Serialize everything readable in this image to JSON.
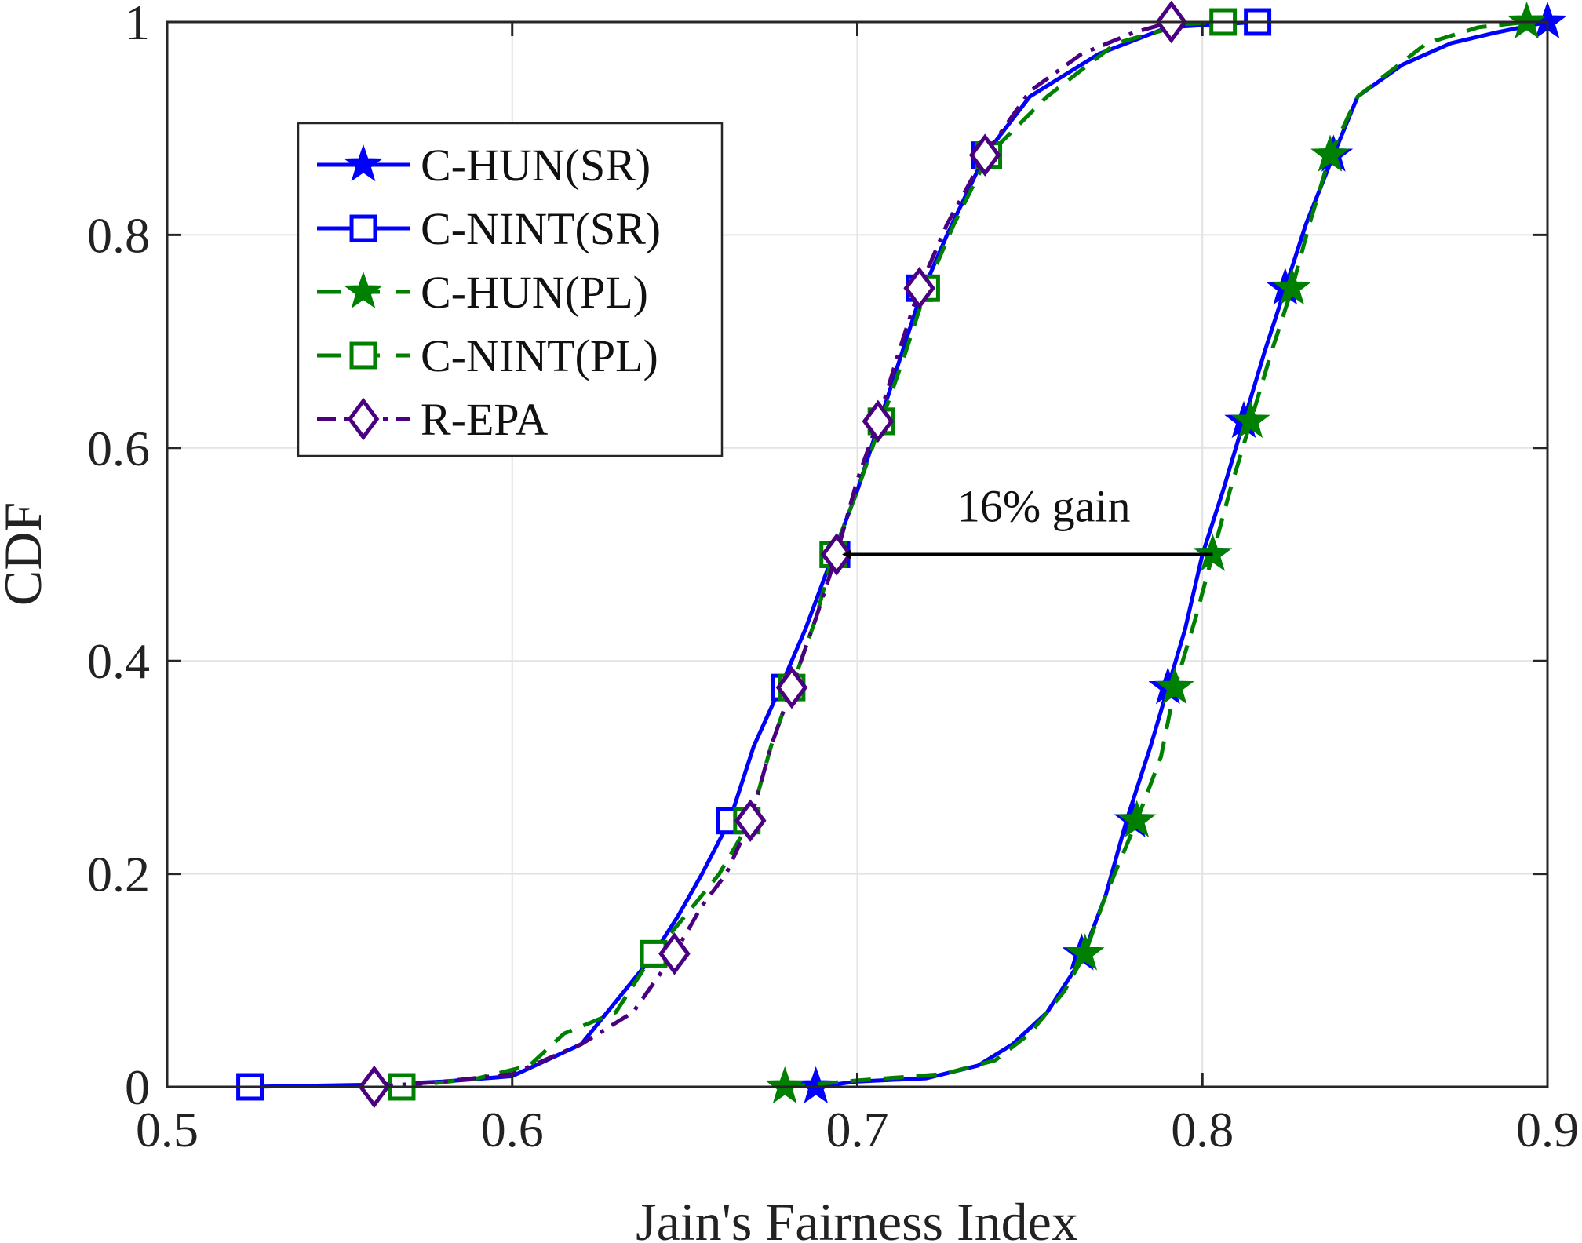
{
  "chart_data": {
    "type": "line",
    "title": "",
    "xlabel": "Jain's Fairness Index",
    "ylabel": "CDF",
    "xlim": [
      0.5,
      0.9
    ],
    "ylim": [
      0,
      1
    ],
    "xticks": [
      0.5,
      0.6,
      0.7,
      0.8,
      0.9
    ],
    "xtick_labels": [
      "0.5",
      "0.6",
      "0.7",
      "0.8",
      "0.9"
    ],
    "yticks": [
      0,
      0.2,
      0.4,
      0.6,
      0.8,
      1
    ],
    "ytick_labels": [
      "0",
      "0.2",
      "0.4",
      "0.6",
      "0.8",
      "1"
    ],
    "grid": true,
    "legend_position": "upper-left",
    "series": [
      {
        "name": "C-HUN(SR)",
        "color": "#0000ff",
        "dash": "solid",
        "marker": "star",
        "points": [
          [
            0.688,
            0
          ],
          [
            0.7,
            0.005
          ],
          [
            0.72,
            0.008
          ],
          [
            0.735,
            0.02
          ],
          [
            0.745,
            0.04
          ],
          [
            0.755,
            0.07
          ],
          [
            0.765,
            0.12
          ],
          [
            0.772,
            0.18
          ],
          [
            0.778,
            0.25
          ],
          [
            0.785,
            0.32
          ],
          [
            0.79,
            0.375
          ],
          [
            0.795,
            0.43
          ],
          [
            0.8,
            0.5
          ],
          [
            0.806,
            0.56
          ],
          [
            0.812,
            0.625
          ],
          [
            0.818,
            0.69
          ],
          [
            0.824,
            0.75
          ],
          [
            0.83,
            0.81
          ],
          [
            0.838,
            0.875
          ],
          [
            0.845,
            0.93
          ],
          [
            0.858,
            0.96
          ],
          [
            0.872,
            0.98
          ],
          [
            0.885,
            0.99
          ],
          [
            0.9,
            1.0
          ]
        ],
        "markers": [
          [
            0.688,
            0
          ],
          [
            0.765,
            0.125
          ],
          [
            0.78,
            0.25
          ],
          [
            0.79,
            0.375
          ],
          [
            0.803,
            0.5
          ],
          [
            0.812,
            0.625
          ],
          [
            0.824,
            0.75
          ],
          [
            0.838,
            0.875
          ],
          [
            0.9,
            1.0
          ]
        ]
      },
      {
        "name": "C-NINT(SR)",
        "color": "#0000ff",
        "dash": "solid",
        "marker": "square",
        "points": [
          [
            0.524,
            0
          ],
          [
            0.56,
            0.002
          ],
          [
            0.58,
            0.005
          ],
          [
            0.6,
            0.01
          ],
          [
            0.62,
            0.04
          ],
          [
            0.64,
            0.12
          ],
          [
            0.648,
            0.16
          ],
          [
            0.655,
            0.2
          ],
          [
            0.663,
            0.25
          ],
          [
            0.67,
            0.32
          ],
          [
            0.677,
            0.37
          ],
          [
            0.685,
            0.43
          ],
          [
            0.693,
            0.5
          ],
          [
            0.7,
            0.56
          ],
          [
            0.706,
            0.62
          ],
          [
            0.712,
            0.68
          ],
          [
            0.718,
            0.74
          ],
          [
            0.726,
            0.8
          ],
          [
            0.737,
            0.875
          ],
          [
            0.75,
            0.93
          ],
          [
            0.77,
            0.97
          ],
          [
            0.79,
            0.995
          ],
          [
            0.816,
            1.0
          ]
        ],
        "markers": [
          [
            0.524,
            0
          ],
          [
            0.641,
            0.125
          ],
          [
            0.663,
            0.25
          ],
          [
            0.679,
            0.375
          ],
          [
            0.694,
            0.5
          ],
          [
            0.707,
            0.625
          ],
          [
            0.718,
            0.75
          ],
          [
            0.737,
            0.875
          ],
          [
            0.816,
            1.0
          ]
        ]
      },
      {
        "name": "C-HUN(PL)",
        "color": "#008000",
        "dash": "dashed",
        "marker": "star",
        "points": [
          [
            0.679,
            0
          ],
          [
            0.7,
            0.006
          ],
          [
            0.725,
            0.012
          ],
          [
            0.74,
            0.025
          ],
          [
            0.75,
            0.05
          ],
          [
            0.76,
            0.09
          ],
          [
            0.766,
            0.125
          ],
          [
            0.772,
            0.18
          ],
          [
            0.781,
            0.25
          ],
          [
            0.788,
            0.31
          ],
          [
            0.792,
            0.375
          ],
          [
            0.798,
            0.44
          ],
          [
            0.803,
            0.5
          ],
          [
            0.808,
            0.56
          ],
          [
            0.814,
            0.625
          ],
          [
            0.82,
            0.69
          ],
          [
            0.826,
            0.75
          ],
          [
            0.831,
            0.81
          ],
          [
            0.837,
            0.875
          ],
          [
            0.845,
            0.93
          ],
          [
            0.865,
            0.98
          ],
          [
            0.88,
            0.995
          ],
          [
            0.894,
            1.0
          ]
        ],
        "markers": [
          [
            0.679,
            0
          ],
          [
            0.766,
            0.125
          ],
          [
            0.781,
            0.25
          ],
          [
            0.792,
            0.375
          ],
          [
            0.803,
            0.5
          ],
          [
            0.814,
            0.625
          ],
          [
            0.826,
            0.75
          ],
          [
            0.837,
            0.875
          ],
          [
            0.894,
            1.0
          ]
        ]
      },
      {
        "name": "C-NINT(PL)",
        "color": "#008000",
        "dash": "dashed",
        "marker": "square",
        "points": [
          [
            0.568,
            0
          ],
          [
            0.59,
            0.008
          ],
          [
            0.605,
            0.02
          ],
          [
            0.615,
            0.05
          ],
          [
            0.63,
            0.07
          ],
          [
            0.641,
            0.125
          ],
          [
            0.65,
            0.16
          ],
          [
            0.66,
            0.2
          ],
          [
            0.669,
            0.25
          ],
          [
            0.675,
            0.32
          ],
          [
            0.681,
            0.375
          ],
          [
            0.688,
            0.44
          ],
          [
            0.693,
            0.5
          ],
          [
            0.7,
            0.56
          ],
          [
            0.707,
            0.625
          ],
          [
            0.714,
            0.69
          ],
          [
            0.72,
            0.75
          ],
          [
            0.728,
            0.81
          ],
          [
            0.738,
            0.875
          ],
          [
            0.755,
            0.93
          ],
          [
            0.775,
            0.98
          ],
          [
            0.795,
            0.998
          ],
          [
            0.806,
            1.0
          ]
        ],
        "markers": [
          [
            0.568,
            0
          ],
          [
            0.641,
            0.125
          ],
          [
            0.668,
            0.25
          ],
          [
            0.681,
            0.375
          ],
          [
            0.693,
            0.5
          ],
          [
            0.707,
            0.625
          ],
          [
            0.72,
            0.75
          ],
          [
            0.738,
            0.875
          ],
          [
            0.806,
            1.0
          ]
        ]
      },
      {
        "name": "R-EPA",
        "color": "#4b0082",
        "dash": "dashdot",
        "marker": "diamond",
        "points": [
          [
            0.56,
            0
          ],
          [
            0.58,
            0.005
          ],
          [
            0.6,
            0.012
          ],
          [
            0.62,
            0.04
          ],
          [
            0.635,
            0.07
          ],
          [
            0.647,
            0.125
          ],
          [
            0.655,
            0.17
          ],
          [
            0.662,
            0.2
          ],
          [
            0.669,
            0.25
          ],
          [
            0.675,
            0.32
          ],
          [
            0.681,
            0.375
          ],
          [
            0.688,
            0.44
          ],
          [
            0.694,
            0.5
          ],
          [
            0.7,
            0.57
          ],
          [
            0.706,
            0.625
          ],
          [
            0.712,
            0.69
          ],
          [
            0.718,
            0.75
          ],
          [
            0.726,
            0.81
          ],
          [
            0.737,
            0.875
          ],
          [
            0.75,
            0.935
          ],
          [
            0.765,
            0.97
          ],
          [
            0.78,
            0.99
          ],
          [
            0.791,
            1.0
          ]
        ],
        "markers": [
          [
            0.56,
            0
          ],
          [
            0.647,
            0.125
          ],
          [
            0.669,
            0.25
          ],
          [
            0.681,
            0.375
          ],
          [
            0.694,
            0.5
          ],
          [
            0.706,
            0.625
          ],
          [
            0.718,
            0.75
          ],
          [
            0.737,
            0.875
          ],
          [
            0.791,
            1.0
          ]
        ]
      }
    ],
    "annotation": {
      "text": "16% gain",
      "arrow_from": [
        0.803,
        0.5
      ],
      "arrow_to": [
        0.696,
        0.5
      ]
    }
  }
}
